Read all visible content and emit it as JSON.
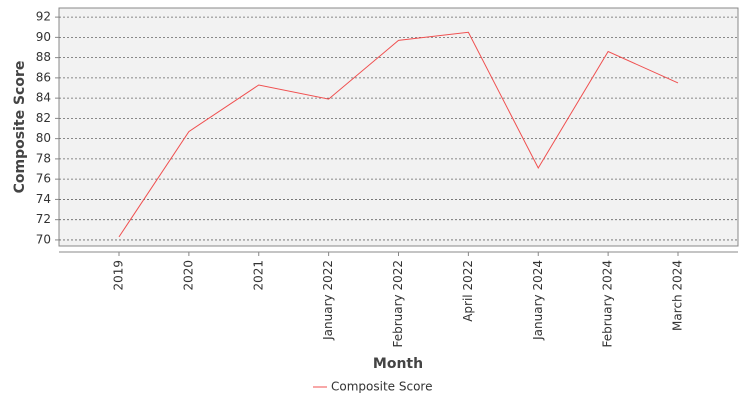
{
  "chart_data": {
    "type": "line",
    "x_label": "Month",
    "y_label": "Composite Score",
    "categories": [
      "2019",
      "2020",
      "2021",
      "January 2022",
      "February 2022",
      "April 2022",
      "January 2024",
      "February 2024",
      "March 2024"
    ],
    "series": [
      {
        "name": "Composite Score",
        "color": "#f05050",
        "values": [
          70.3,
          80.7,
          85.3,
          83.9,
          89.7,
          90.5,
          77.1,
          88.6,
          85.5
        ]
      }
    ],
    "ylim": [
      69.4,
      92.9
    ],
    "yticks": [
      70,
      72,
      74,
      76,
      78,
      80,
      82,
      84,
      86,
      88,
      90,
      92
    ],
    "grid": true,
    "legend": "bottom"
  }
}
